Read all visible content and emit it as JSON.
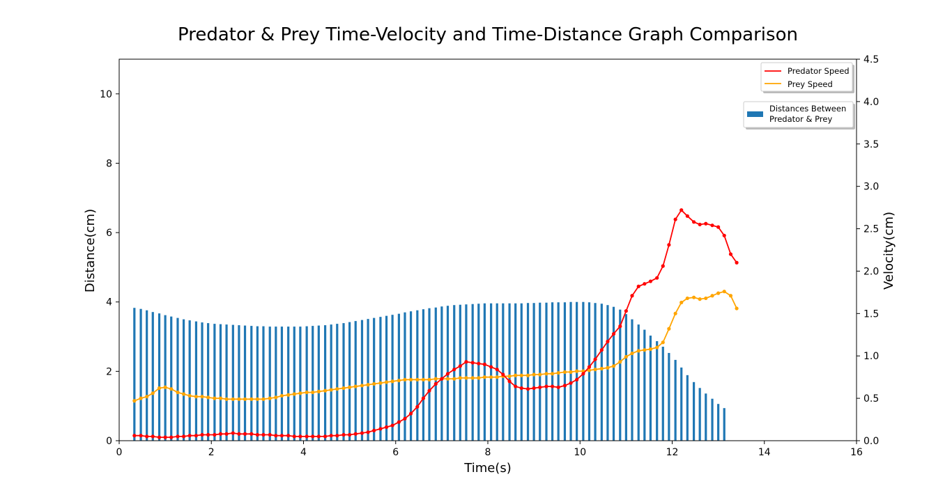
{
  "chart_data": {
    "type": "bar+line",
    "title": "Predator & Prey Time-Velocity and Time-Distance Graph Comparison",
    "xlabel": "Time(s)",
    "ylabel_left": "Distance(cm)",
    "ylabel_right": "Velocity(cm)",
    "xlim": [
      0,
      16
    ],
    "ylim_left": [
      0,
      11
    ],
    "ylim_right": [
      0,
      4.5
    ],
    "x_ticks": [
      "0",
      "2",
      "4",
      "6",
      "8",
      "10",
      "12",
      "14",
      "16"
    ],
    "y_left_ticks": [
      "0",
      "2",
      "4",
      "6",
      "8",
      "10"
    ],
    "y_right_ticks": [
      "0.0",
      "0.5",
      "1.0",
      "1.5",
      "2.0",
      "2.5",
      "3.0",
      "3.5",
      "4.0",
      "4.5"
    ],
    "legend_lines": {
      "placement": "top-right",
      "entries": [
        {
          "label": "Predator Speed",
          "color": "#ff0000"
        },
        {
          "label": "Prey Speed",
          "color": "#ffa500"
        }
      ]
    },
    "legend_bars": {
      "placement": "upper-right",
      "label_line1": "Distances Between",
      "label_line2": "Predator & Prey",
      "color": "#1f77b4"
    },
    "x": [
      0.33,
      0.47,
      0.6,
      0.73,
      0.87,
      1.0,
      1.13,
      1.27,
      1.4,
      1.53,
      1.67,
      1.8,
      1.93,
      2.07,
      2.2,
      2.33,
      2.47,
      2.6,
      2.73,
      2.87,
      3.0,
      3.13,
      3.27,
      3.4,
      3.53,
      3.67,
      3.8,
      3.93,
      4.07,
      4.2,
      4.33,
      4.47,
      4.6,
      4.73,
      4.87,
      5.0,
      5.13,
      5.27,
      5.4,
      5.53,
      5.67,
      5.8,
      5.93,
      6.07,
      6.2,
      6.33,
      6.47,
      6.6,
      6.73,
      6.87,
      7.0,
      7.13,
      7.27,
      7.4,
      7.53,
      7.67,
      7.8,
      7.93,
      8.07,
      8.2,
      8.33,
      8.47,
      8.6,
      8.73,
      8.87,
      9.0,
      9.13,
      9.27,
      9.4,
      9.53,
      9.67,
      9.8,
      9.93,
      10.07,
      10.2,
      10.33,
      10.47,
      10.6,
      10.73,
      10.87,
      11.0,
      11.13,
      11.27,
      11.4,
      11.53,
      11.67,
      11.8,
      11.93,
      12.07,
      12.2,
      12.33,
      12.47,
      12.6,
      12.73,
      12.87,
      13.0,
      13.13,
      13.27,
      13.4
    ],
    "distances": [
      3.83,
      3.8,
      3.76,
      3.71,
      3.67,
      3.62,
      3.58,
      3.54,
      3.5,
      3.47,
      3.44,
      3.41,
      3.39,
      3.37,
      3.36,
      3.35,
      3.34,
      3.33,
      3.32,
      3.31,
      3.3,
      3.3,
      3.29,
      3.29,
      3.29,
      3.29,
      3.29,
      3.29,
      3.3,
      3.31,
      3.32,
      3.33,
      3.35,
      3.37,
      3.39,
      3.42,
      3.45,
      3.48,
      3.51,
      3.54,
      3.57,
      3.6,
      3.63,
      3.66,
      3.7,
      3.73,
      3.76,
      3.79,
      3.82,
      3.84,
      3.87,
      3.89,
      3.91,
      3.92,
      3.93,
      3.94,
      3.95,
      3.96,
      3.96,
      3.96,
      3.96,
      3.96,
      3.96,
      3.96,
      3.97,
      3.97,
      3.98,
      3.98,
      3.99,
      3.99,
      3.99,
      4.0,
      4.0,
      4.0,
      3.99,
      3.97,
      3.95,
      3.91,
      3.86,
      3.78,
      3.65,
      3.5,
      3.35,
      3.2,
      3.03,
      2.87,
      2.71,
      2.53,
      2.33,
      2.11,
      1.89,
      1.69,
      1.52,
      1.36,
      1.21,
      1.06,
      0.94
    ],
    "predator_speed_x": [
      0.33,
      0.47,
      0.6,
      0.73,
      0.87,
      1.0,
      1.13,
      1.27,
      1.4,
      1.53,
      1.67,
      1.8,
      1.93,
      2.07,
      2.2,
      2.33,
      2.47,
      2.6,
      2.73,
      2.87,
      3.0,
      3.13,
      3.27,
      3.4,
      3.53,
      3.67,
      3.8,
      3.93,
      4.07,
      4.2,
      4.33,
      4.47,
      4.6,
      4.73,
      4.87,
      5.0,
      5.13,
      5.27,
      5.4,
      5.53,
      5.67,
      5.8,
      5.93,
      6.07,
      6.2,
      6.33,
      6.47,
      6.6,
      6.73,
      6.87,
      7.0,
      7.13,
      7.27,
      7.4,
      7.53,
      7.67,
      7.8,
      7.93,
      8.07,
      8.2,
      8.33,
      8.47,
      8.6,
      8.73,
      8.87,
      9.0,
      9.13,
      9.27,
      9.4,
      9.53,
      9.67,
      9.8,
      9.93,
      10.07,
      10.2,
      10.33,
      10.47,
      10.6,
      10.73,
      10.87,
      11.0,
      11.13,
      11.27,
      11.4,
      11.53,
      11.67,
      11.8,
      11.93,
      12.07,
      12.2,
      12.33,
      12.47,
      12.6,
      12.73,
      12.87,
      13.0,
      13.13,
      13.27,
      13.4
    ],
    "predator_speed": [
      0.06,
      0.06,
      0.05,
      0.05,
      0.04,
      0.04,
      0.04,
      0.05,
      0.05,
      0.06,
      0.06,
      0.07,
      0.07,
      0.07,
      0.08,
      0.08,
      0.09,
      0.08,
      0.08,
      0.08,
      0.07,
      0.07,
      0.07,
      0.06,
      0.06,
      0.06,
      0.05,
      0.05,
      0.05,
      0.05,
      0.05,
      0.05,
      0.06,
      0.06,
      0.07,
      0.07,
      0.08,
      0.09,
      0.1,
      0.12,
      0.14,
      0.16,
      0.18,
      0.22,
      0.26,
      0.32,
      0.4,
      0.5,
      0.59,
      0.67,
      0.73,
      0.79,
      0.84,
      0.88,
      0.93,
      0.92,
      0.91,
      0.9,
      0.87,
      0.84,
      0.78,
      0.7,
      0.64,
      0.62,
      0.61,
      0.62,
      0.63,
      0.64,
      0.64,
      0.63,
      0.65,
      0.68,
      0.72,
      0.79,
      0.87,
      0.96,
      1.07,
      1.17,
      1.26,
      1.35,
      1.53,
      1.71,
      1.82,
      1.85,
      1.88,
      1.92,
      2.06,
      2.31,
      2.61,
      2.72,
      2.65,
      2.58,
      2.55,
      2.56,
      2.54,
      2.52,
      2.42,
      2.2,
      2.1
    ],
    "prey_speed_x": [
      0.33,
      0.47,
      0.6,
      0.73,
      0.87,
      1.0,
      1.13,
      1.27,
      1.4,
      1.53,
      1.67,
      1.8,
      1.93,
      2.07,
      2.2,
      2.33,
      2.47,
      2.6,
      2.73,
      2.87,
      3.0,
      3.13,
      3.27,
      3.4,
      3.53,
      3.67,
      3.8,
      3.93,
      4.07,
      4.2,
      4.33,
      4.47,
      4.6,
      4.73,
      4.87,
      5.0,
      5.13,
      5.27,
      5.4,
      5.53,
      5.67,
      5.8,
      5.93,
      6.07,
      6.2,
      6.33,
      6.47,
      6.6,
      6.73,
      6.87,
      7.0,
      7.13,
      7.27,
      7.4,
      7.53,
      7.67,
      7.8,
      7.93,
      8.07,
      8.2,
      8.33,
      8.47,
      8.6,
      8.73,
      8.87,
      9.0,
      9.13,
      9.27,
      9.4,
      9.53,
      9.67,
      9.8,
      9.93,
      10.07,
      10.2,
      10.33,
      10.47,
      10.6,
      10.73,
      10.87,
      11.0,
      11.13,
      11.27,
      11.4,
      11.53,
      11.67,
      11.8,
      11.93,
      12.07,
      12.2,
      12.33,
      12.47,
      12.6,
      12.73,
      12.87,
      13.0,
      13.13,
      13.27,
      13.4
    ],
    "prey_speed": [
      0.47,
      0.5,
      0.52,
      0.56,
      0.62,
      0.63,
      0.61,
      0.57,
      0.55,
      0.53,
      0.52,
      0.52,
      0.51,
      0.5,
      0.5,
      0.49,
      0.49,
      0.49,
      0.49,
      0.49,
      0.49,
      0.49,
      0.5,
      0.51,
      0.53,
      0.54,
      0.55,
      0.56,
      0.57,
      0.57,
      0.58,
      0.59,
      0.6,
      0.61,
      0.62,
      0.63,
      0.64,
      0.65,
      0.66,
      0.67,
      0.68,
      0.69,
      0.7,
      0.71,
      0.72,
      0.72,
      0.72,
      0.72,
      0.72,
      0.73,
      0.73,
      0.73,
      0.73,
      0.74,
      0.74,
      0.74,
      0.74,
      0.75,
      0.75,
      0.75,
      0.76,
      0.76,
      0.77,
      0.77,
      0.77,
      0.78,
      0.78,
      0.79,
      0.79,
      0.8,
      0.81,
      0.81,
      0.82,
      0.82,
      0.83,
      0.84,
      0.85,
      0.86,
      0.88,
      0.93,
      0.99,
      1.03,
      1.06,
      1.07,
      1.08,
      1.1,
      1.16,
      1.32,
      1.5,
      1.63,
      1.68,
      1.69,
      1.67,
      1.68,
      1.71,
      1.74,
      1.76,
      1.71,
      1.56
    ]
  }
}
